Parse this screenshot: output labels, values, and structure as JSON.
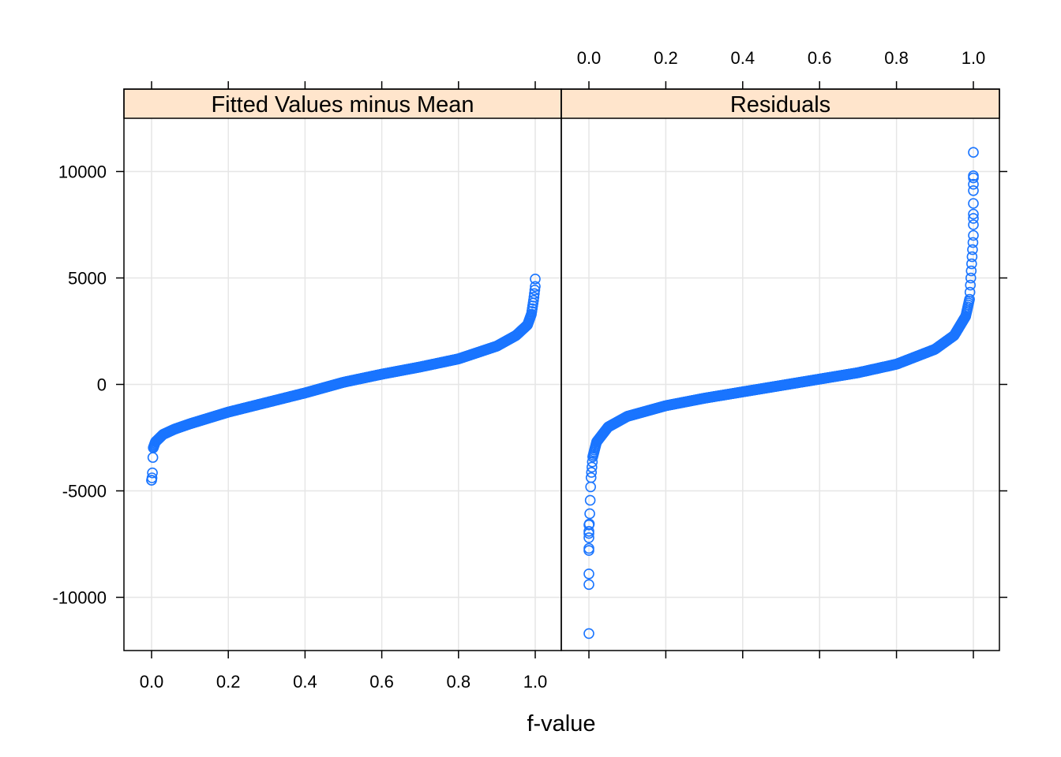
{
  "chart_data": {
    "type": "scatter",
    "plot_kind": "f-value (quantile) spread-location plot",
    "xlabel": "f-value",
    "ylabel": "",
    "xlim": [
      0,
      1
    ],
    "ylim": [
      -12500,
      12500
    ],
    "x_ticks": [
      "0.0",
      "0.2",
      "0.4",
      "0.6",
      "0.8",
      "1.0"
    ],
    "y_ticks": [
      "10000",
      "5000",
      "0",
      "-5000",
      "-10000"
    ],
    "x_tick_values": [
      0,
      0.2,
      0.4,
      0.6,
      0.8,
      1.0
    ],
    "y_tick_values": [
      10000,
      5000,
      0,
      -5000,
      -10000
    ],
    "grid": true,
    "point_color": "#1a75ff",
    "strip_color": "#ffe5cc",
    "panels": [
      {
        "name": "Fitted Values minus Mean",
        "quantile_curve": [
          [
            0.0,
            -4500
          ],
          [
            0.002,
            -4300
          ],
          [
            0.004,
            -3000
          ],
          [
            0.01,
            -2700
          ],
          [
            0.03,
            -2350
          ],
          [
            0.06,
            -2100
          ],
          [
            0.1,
            -1850
          ],
          [
            0.2,
            -1300
          ],
          [
            0.3,
            -850
          ],
          [
            0.4,
            -400
          ],
          [
            0.5,
            100
          ],
          [
            0.6,
            480
          ],
          [
            0.7,
            820
          ],
          [
            0.8,
            1200
          ],
          [
            0.9,
            1800
          ],
          [
            0.95,
            2300
          ],
          [
            0.98,
            2800
          ],
          [
            0.99,
            3300
          ],
          [
            0.996,
            4000
          ],
          [
            1.0,
            4600
          ]
        ],
        "extremes": [
          [
            0.0,
            -4500
          ],
          [
            1.0,
            4950
          ]
        ]
      },
      {
        "name": "Residuals",
        "quantile_curve": [
          [
            0.0,
            -7000
          ],
          [
            0.002,
            -6200
          ],
          [
            0.005,
            -4500
          ],
          [
            0.01,
            -3400
          ],
          [
            0.02,
            -2700
          ],
          [
            0.05,
            -2000
          ],
          [
            0.1,
            -1500
          ],
          [
            0.2,
            -1000
          ],
          [
            0.3,
            -650
          ],
          [
            0.4,
            -350
          ],
          [
            0.5,
            -50
          ],
          [
            0.6,
            250
          ],
          [
            0.7,
            550
          ],
          [
            0.8,
            950
          ],
          [
            0.9,
            1650
          ],
          [
            0.95,
            2300
          ],
          [
            0.98,
            3200
          ],
          [
            0.99,
            4000
          ],
          [
            0.995,
            5500
          ],
          [
            1.0,
            7000
          ]
        ],
        "extremes": [
          [
            0.0,
            -11700
          ],
          [
            0.0,
            -9400
          ],
          [
            0.0,
            -8900
          ],
          [
            0.0,
            -7800
          ],
          [
            0.0,
            -7700
          ],
          [
            0.0,
            -7200
          ],
          [
            0.0,
            -6900
          ],
          [
            0.0,
            -6600
          ],
          [
            1.0,
            10900
          ],
          [
            1.0,
            9800
          ],
          [
            1.0,
            9700
          ],
          [
            1.0,
            9400
          ],
          [
            1.0,
            9100
          ],
          [
            1.0,
            8500
          ],
          [
            1.0,
            8000
          ],
          [
            1.0,
            7800
          ],
          [
            1.0,
            7500
          ]
        ]
      }
    ]
  }
}
